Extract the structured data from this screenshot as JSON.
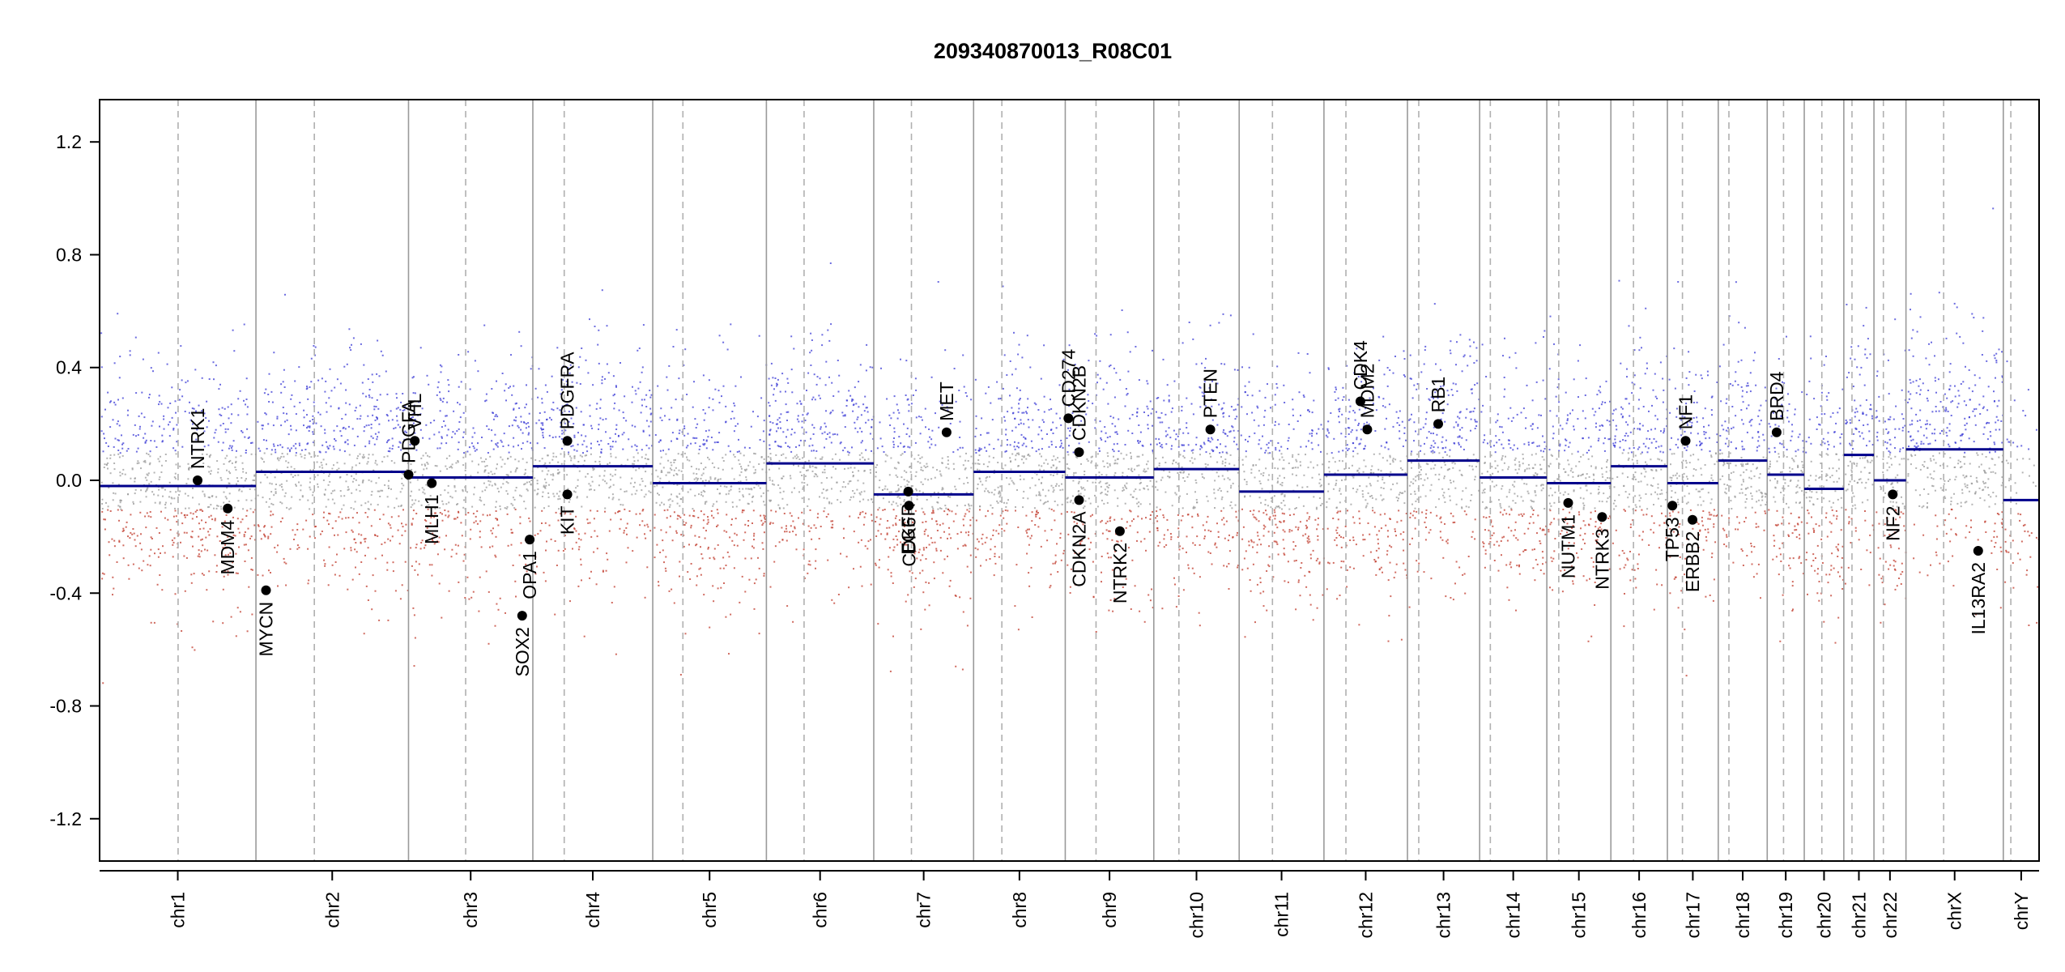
{
  "chart_data": {
    "type": "scatter",
    "title": "209340870013_R08C01",
    "xlabel": "",
    "ylabel": "",
    "ylim": [
      -1.35,
      1.35
    ],
    "yticks": [
      "1.2",
      "0.8",
      "0.4",
      "0.0",
      "-0.4",
      "-0.8",
      "-1.2"
    ],
    "ytick_values": [
      1.2,
      0.8,
      0.4,
      0.0,
      -0.4,
      -0.8,
      -1.2
    ],
    "colors": {
      "gain": "#3b3bd6",
      "loss": "#c0392b",
      "neutral": "#9a9a9a",
      "segment": "#00008b",
      "gene_point": "#000000"
    },
    "chromosomes": [
      {
        "name": "chr1",
        "len": 249,
        "cent": 125
      },
      {
        "name": "chr2",
        "len": 243,
        "cent": 93
      },
      {
        "name": "chr3",
        "len": 198,
        "cent": 91
      },
      {
        "name": "chr4",
        "len": 191,
        "cent": 50
      },
      {
        "name": "chr5",
        "len": 181,
        "cent": 48
      },
      {
        "name": "chr6",
        "len": 171,
        "cent": 60
      },
      {
        "name": "chr7",
        "len": 159,
        "cent": 60
      },
      {
        "name": "chr8",
        "len": 146,
        "cent": 45
      },
      {
        "name": "chr9",
        "len": 141,
        "cent": 49
      },
      {
        "name": "chr10",
        "len": 136,
        "cent": 40
      },
      {
        "name": "chr11",
        "len": 135,
        "cent": 53
      },
      {
        "name": "chr12",
        "len": 133,
        "cent": 35
      },
      {
        "name": "chr13",
        "len": 115,
        "cent": 18
      },
      {
        "name": "chr14",
        "len": 107,
        "cent": 17
      },
      {
        "name": "chr15",
        "len": 102,
        "cent": 19
      },
      {
        "name": "chr16",
        "len": 90,
        "cent": 36
      },
      {
        "name": "chr17",
        "len": 81,
        "cent": 24
      },
      {
        "name": "chr18",
        "len": 78,
        "cent": 17
      },
      {
        "name": "chr19",
        "len": 59,
        "cent": 26
      },
      {
        "name": "chr20",
        "len": 63,
        "cent": 28
      },
      {
        "name": "chr21",
        "len": 48,
        "cent": 13
      },
      {
        "name": "chr22",
        "len": 51,
        "cent": 15
      },
      {
        "name": "chrX",
        "len": 155,
        "cent": 60
      },
      {
        "name": "chrY",
        "len": 57,
        "cent": 12
      }
    ],
    "segments": [
      {
        "chr": "chr1",
        "y": -0.02
      },
      {
        "chr": "chr2",
        "y": 0.03
      },
      {
        "chr": "chr3",
        "y": 0.01
      },
      {
        "chr": "chr4",
        "y": 0.05
      },
      {
        "chr": "chr5",
        "y": -0.01
      },
      {
        "chr": "chr6",
        "y": 0.06
      },
      {
        "chr": "chr7",
        "y": -0.05
      },
      {
        "chr": "chr8",
        "y": 0.03
      },
      {
        "chr": "chr9",
        "y": 0.01
      },
      {
        "chr": "chr10",
        "y": 0.04
      },
      {
        "chr": "chr11",
        "y": -0.04
      },
      {
        "chr": "chr12",
        "y": 0.02
      },
      {
        "chr": "chr13",
        "y": 0.07
      },
      {
        "chr": "chr14",
        "y": 0.01
      },
      {
        "chr": "chr15",
        "y": -0.01
      },
      {
        "chr": "chr16",
        "y": 0.05
      },
      {
        "chr": "chr17",
        "y": -0.01
      },
      {
        "chr": "chr18",
        "y": 0.07
      },
      {
        "chr": "chr19",
        "y": 0.02
      },
      {
        "chr": "chr20",
        "y": -0.03
      },
      {
        "chr": "chr21",
        "y": 0.09
      },
      {
        "chr": "chr22",
        "y": 0.0
      },
      {
        "chr": "chrX",
        "y": 0.11
      },
      {
        "chr": "chrY",
        "y": -0.07
      }
    ],
    "genes": [
      {
        "name": "NTRK1",
        "chr": "chr1",
        "pos": 156,
        "y": 0.0,
        "label_side": "above"
      },
      {
        "name": "MDM4",
        "chr": "chr1",
        "pos": 204,
        "y": -0.1,
        "label_side": "below"
      },
      {
        "name": "MYCN",
        "chr": "chr2",
        "pos": 16,
        "y": -0.39,
        "label_side": "below"
      },
      {
        "name": "PDGFA",
        "chr": "chr3",
        "pos": 0,
        "y": 0.02,
        "label_side": "above"
      },
      {
        "name": "VHL",
        "chr": "chr3",
        "pos": 10,
        "y": 0.14,
        "label_side": "above"
      },
      {
        "name": "MLH1",
        "chr": "chr3",
        "pos": 37,
        "y": -0.01,
        "label_side": "below"
      },
      {
        "name": "SOX2",
        "chr": "chr3",
        "pos": 181,
        "y": -0.48,
        "label_side": "below"
      },
      {
        "name": "OPA1",
        "chr": "chr3",
        "pos": 193,
        "y": -0.21,
        "label_side": "below"
      },
      {
        "name": "PDGFRA",
        "chr": "chr4",
        "pos": 55,
        "y": 0.14,
        "label_side": "above"
      },
      {
        "name": "KIT",
        "chr": "chr4",
        "pos": 55,
        "y": -0.05,
        "label_side": "below"
      },
      {
        "name": "EGFR",
        "chr": "chr7",
        "pos": 55,
        "y": -0.04,
        "label_side": "below"
      },
      {
        "name": "CDK6",
        "chr": "chr7",
        "pos": 56,
        "y": -0.09,
        "label_side": "below"
      },
      {
        "name": "MET",
        "chr": "chr7",
        "pos": 116,
        "y": 0.17,
        "label_side": "above"
      },
      {
        "name": "CD274",
        "chr": "chr9",
        "pos": 5,
        "y": 0.22,
        "label_side": "above"
      },
      {
        "name": "CDKN2B",
        "chr": "chr9",
        "pos": 22,
        "y": 0.1,
        "label_side": "above"
      },
      {
        "name": "CDKN2A",
        "chr": "chr9",
        "pos": 22,
        "y": -0.07,
        "label_side": "below"
      },
      {
        "name": "NTRK2",
        "chr": "chr9",
        "pos": 87,
        "y": -0.18,
        "label_side": "below"
      },
      {
        "name": "PTEN",
        "chr": "chr10",
        "pos": 90,
        "y": 0.18,
        "label_side": "above"
      },
      {
        "name": "CDK4",
        "chr": "chr12",
        "pos": 58,
        "y": 0.28,
        "label_side": "above"
      },
      {
        "name": "MDM2",
        "chr": "chr12",
        "pos": 69,
        "y": 0.18,
        "label_side": "above"
      },
      {
        "name": "RB1",
        "chr": "chr13",
        "pos": 49,
        "y": 0.2,
        "label_side": "above"
      },
      {
        "name": "NUTM1",
        "chr": "chr15",
        "pos": 34,
        "y": -0.08,
        "label_side": "below"
      },
      {
        "name": "NTRK3",
        "chr": "chr15",
        "pos": 88,
        "y": -0.13,
        "label_side": "below"
      },
      {
        "name": "TP53",
        "chr": "chr17",
        "pos": 8,
        "y": -0.09,
        "label_side": "below"
      },
      {
        "name": "NF1",
        "chr": "chr17",
        "pos": 29,
        "y": 0.14,
        "label_side": "above"
      },
      {
        "name": "ERBB2",
        "chr": "chr17",
        "pos": 40,
        "y": -0.14,
        "label_side": "below"
      },
      {
        "name": "BRD4",
        "chr": "chr19",
        "pos": 15,
        "y": 0.17,
        "label_side": "above"
      },
      {
        "name": "NF2",
        "chr": "chr22",
        "pos": 30,
        "y": -0.05,
        "label_side": "below"
      },
      {
        "name": "IL13RA2",
        "chr": "chrX",
        "pos": 115,
        "y": -0.25,
        "label_side": "below"
      }
    ]
  }
}
